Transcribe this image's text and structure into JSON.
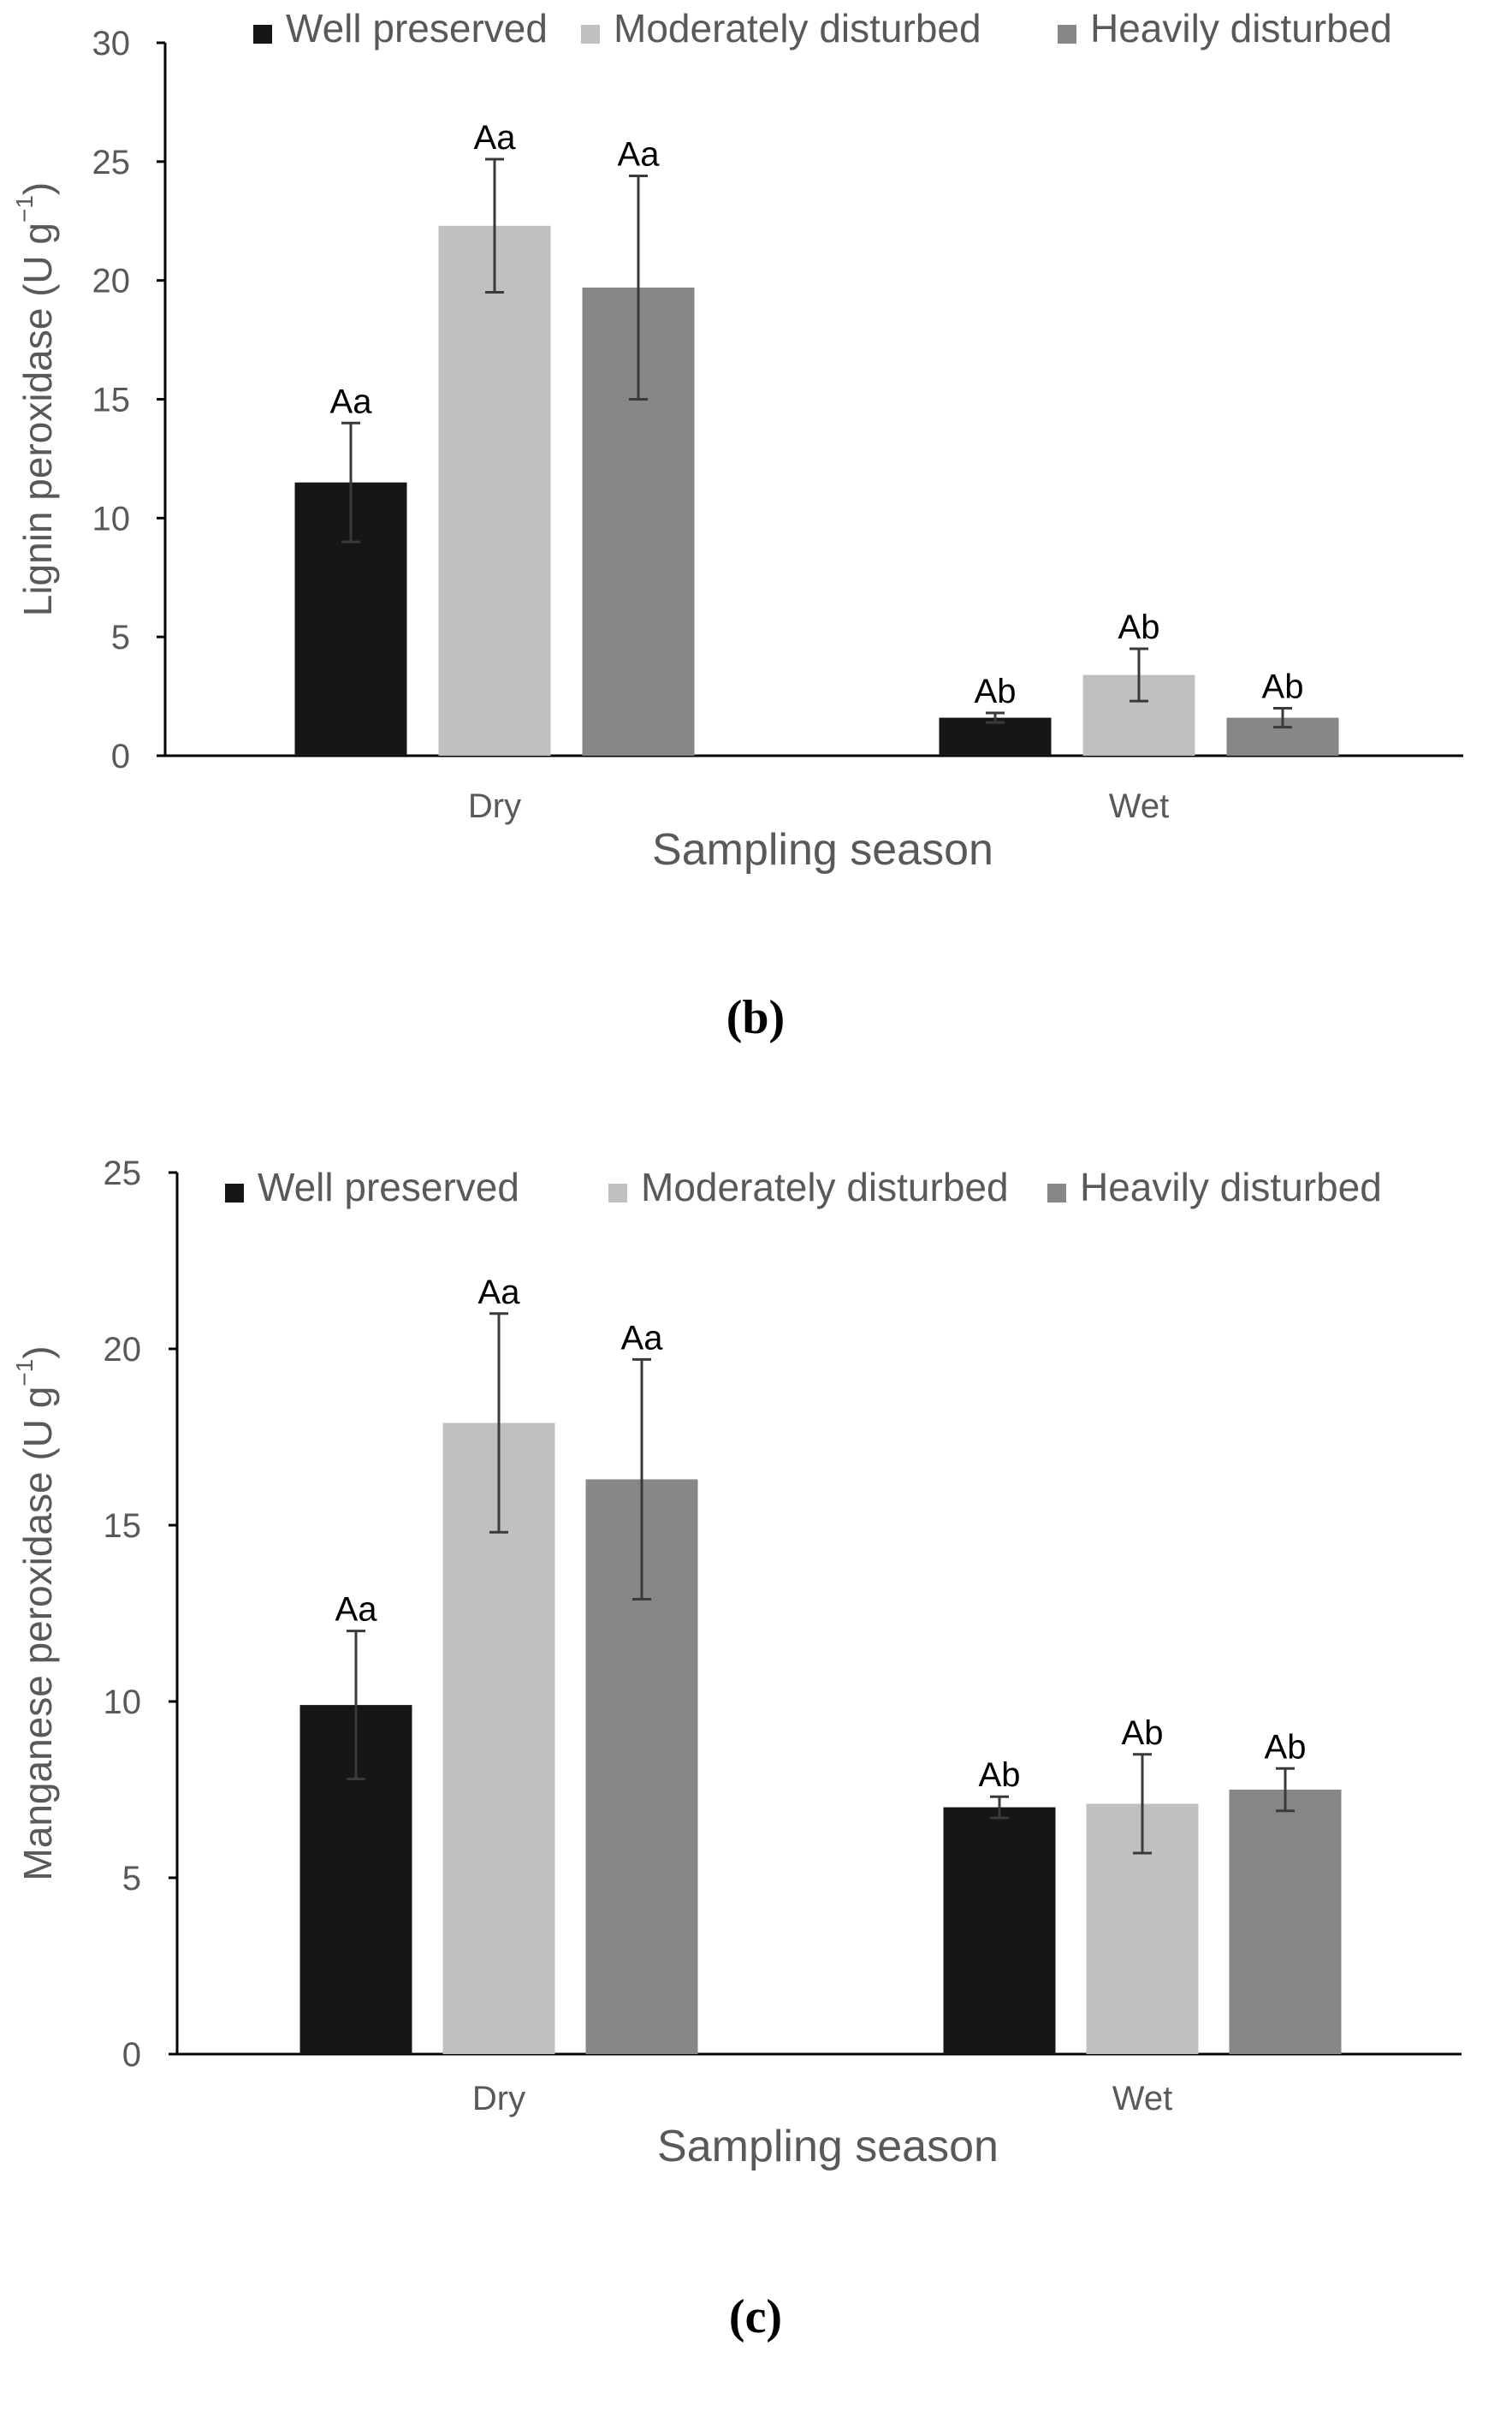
{
  "colors": {
    "well_preserved": "#161616",
    "moderately_disturbed": "#c0c0c0",
    "heavily_disturbed": "#878787",
    "axis": "#000000",
    "text": "#595959",
    "error_bar": "#3a3a3a"
  },
  "chart_data": [
    {
      "type": "bar",
      "panel_label": "(b)",
      "title": "",
      "xlabel": "Sampling season",
      "ylabel": "Lignin peroxidase (U g",
      "ylabel_sup": "−1",
      "ylabel_close": ")",
      "ylim": [
        0,
        30
      ],
      "yticks": [
        0,
        5,
        10,
        15,
        20,
        25,
        30
      ],
      "categories": [
        "Dry",
        "Wet"
      ],
      "legend": [
        "Well preserved",
        "Moderately disturbed",
        "Heavily disturbed"
      ],
      "legend_position": "top",
      "series": [
        {
          "name": "Well preserved",
          "color_key": "well_preserved",
          "values": [
            11.5,
            1.6
          ],
          "errors": [
            2.5,
            0.2
          ],
          "labels": [
            "Aa",
            "Ab"
          ]
        },
        {
          "name": "Moderately disturbed",
          "color_key": "moderately_disturbed",
          "values": [
            22.3,
            3.4
          ],
          "errors": [
            2.8,
            1.1
          ],
          "labels": [
            "Aa",
            "Ab"
          ]
        },
        {
          "name": "Heavily disturbed",
          "color_key": "heavily_disturbed",
          "values": [
            19.7,
            1.6
          ],
          "errors": [
            4.7,
            0.4
          ],
          "labels": [
            "Aa",
            "Ab"
          ]
        }
      ]
    },
    {
      "type": "bar",
      "panel_label": "(c)",
      "title": "",
      "xlabel": "Sampling season",
      "ylabel": "Manganese peroxidase (U g",
      "ylabel_sup": "−1",
      "ylabel_close": ")",
      "ylim": [
        0,
        25
      ],
      "yticks": [
        0,
        5,
        10,
        15,
        20,
        25
      ],
      "categories": [
        "Dry",
        "Wet"
      ],
      "legend": [
        "Well preserved",
        "Moderately disturbed",
        "Heavily disturbed"
      ],
      "legend_position": "top",
      "series": [
        {
          "name": "Well preserved",
          "color_key": "well_preserved",
          "values": [
            9.9,
            7.0
          ],
          "errors": [
            2.1,
            0.3
          ],
          "labels": [
            "Aa",
            "Ab"
          ]
        },
        {
          "name": "Moderately disturbed",
          "color_key": "moderately_disturbed",
          "values": [
            17.9,
            7.1
          ],
          "errors": [
            3.1,
            1.4
          ],
          "labels": [
            "Aa",
            "Ab"
          ]
        },
        {
          "name": "Heavily disturbed",
          "color_key": "heavily_disturbed",
          "values": [
            16.3,
            7.5
          ],
          "errors": [
            3.4,
            0.6
          ],
          "labels": [
            "Aa",
            "Ab"
          ]
        }
      ]
    }
  ]
}
